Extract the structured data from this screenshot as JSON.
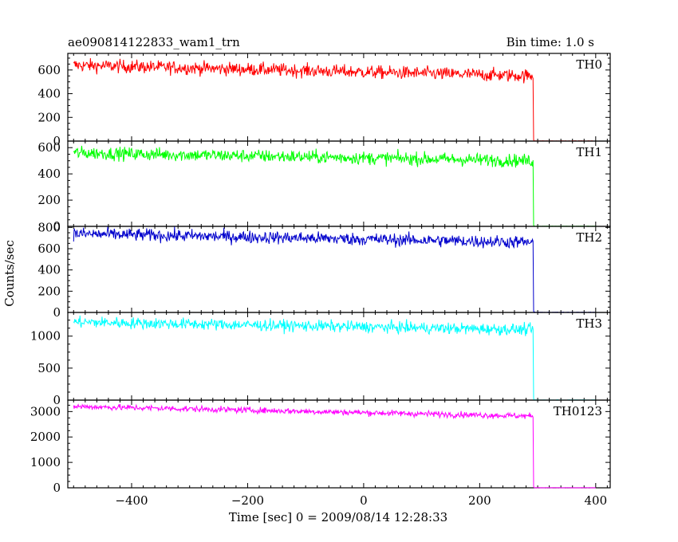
{
  "chart_data": {
    "type": "line",
    "title_left": "ae090814122833_wam1_trn",
    "title_right": "Bin time: 1.0 s",
    "xlabel": "Time [sec] 0 = 2009/08/14 12:28:33",
    "ylabel": "Counts/sec",
    "xlim": [
      -510,
      425
    ],
    "x_ticks": [
      -400,
      -200,
      0,
      200,
      400
    ],
    "x_tick_labels": [
      "−400",
      "−200",
      "0",
      "200",
      "400"
    ],
    "data_x_range": [
      -500,
      400
    ],
    "drop_time": 292,
    "panels": [
      {
        "name": "TH0",
        "color": "#ff0000",
        "ylim": [
          0,
          740
        ],
        "y_ticks": [
          0,
          200,
          400,
          600
        ],
        "y_tick_labels": [
          "0",
          "200",
          "400",
          "600"
        ],
        "level_start": 640,
        "level_end": 550,
        "noise": 28,
        "after_drop": 0
      },
      {
        "name": "TH1",
        "color": "#00ff00",
        "ylim": [
          0,
          650
        ],
        "y_ticks": [
          0,
          200,
          400,
          600
        ],
        "y_tick_labels": [
          "0",
          "200",
          "400",
          "600"
        ],
        "level_start": 560,
        "level_end": 500,
        "noise": 25,
        "after_drop": 0
      },
      {
        "name": "TH2",
        "color": "#0000cc",
        "ylim": [
          0,
          810
        ],
        "y_ticks": [
          0,
          200,
          400,
          600,
          800
        ],
        "y_tick_labels": [
          "0",
          "200",
          "400",
          "600",
          "800"
        ],
        "level_start": 740,
        "level_end": 660,
        "noise": 30,
        "after_drop": 0
      },
      {
        "name": "TH3",
        "color": "#00ffff",
        "ylim": [
          0,
          1370
        ],
        "y_ticks": [
          0,
          500,
          1000
        ],
        "y_tick_labels": [
          "0",
          "500",
          "1000"
        ],
        "level_start": 1220,
        "level_end": 1100,
        "noise": 45,
        "after_drop": 0
      },
      {
        "name": "TH0123",
        "color": "#ff00ff",
        "ylim": [
          0,
          3450
        ],
        "y_ticks": [
          0,
          1000,
          2000,
          3000
        ],
        "y_tick_labels": [
          "0",
          "1000",
          "2000",
          "3000"
        ],
        "level_start": 3200,
        "level_end": 2820,
        "noise": 60,
        "after_drop": 0
      }
    ]
  }
}
